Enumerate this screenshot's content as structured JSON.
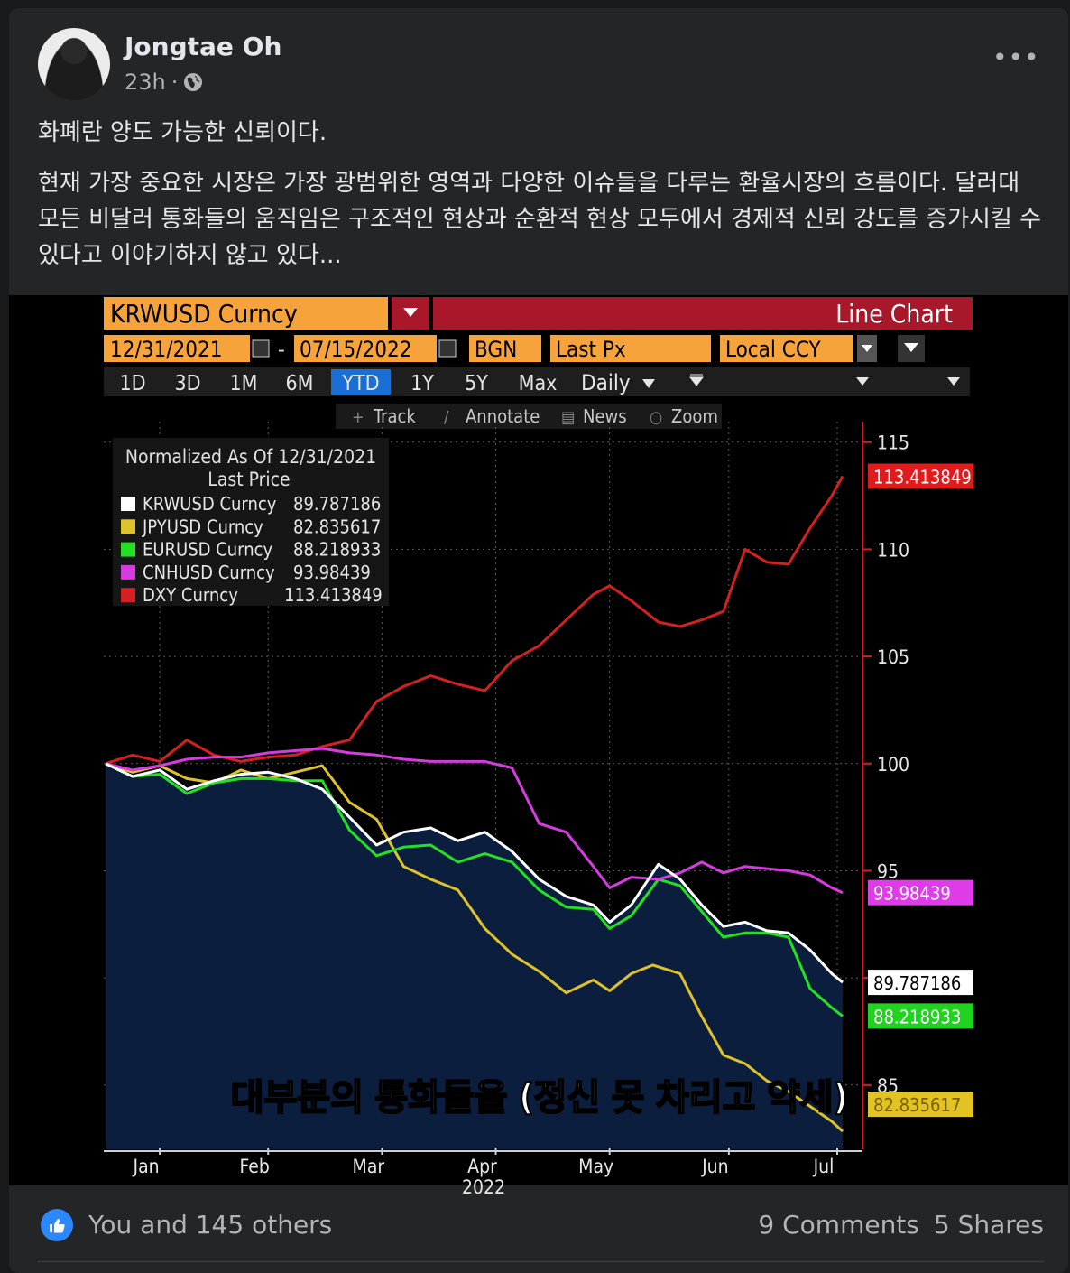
{
  "post": {
    "author": "Jongtae Oh",
    "time": "23h",
    "separator": "·",
    "more_label": "•••",
    "paragraph1": "화폐란 양도 가능한 신뢰이다.",
    "paragraph2": "현재 가장 중요한 시장은 가장 광범위한 영역과 다양한 이슈들을 다루는 환율시장의 흐름이다. 달러대 모든 비달러 통화들의 움직임은 구조적인 현상과 순환적 현상 모두에서 경제적 신뢰 강도를 증가시킬 수 있다고 이야기하지 않고 있다..."
  },
  "terminal": {
    "ticker": "KRWUSD Curncy",
    "chart_kind": "Line Chart",
    "start_date": "12/31/2021",
    "dash": "-",
    "end_date": "07/15/2022",
    "source": "BGN",
    "field": "Last Px",
    "currency": "Local CCY",
    "periods": [
      "1D",
      "3D",
      "1M",
      "6M",
      "YTD",
      "1Y",
      "5Y",
      "Max"
    ],
    "frequency": "Daily",
    "tools": [
      "Track",
      "Annotate",
      "News",
      "Zoom"
    ],
    "legend_title": "Normalized As Of 12/31/2021",
    "legend_subtitle": "Last Price",
    "subtitle_caption": "대부분의 통화들을 (정신 못 차리고 약세)"
  },
  "chart_data": {
    "type": "line",
    "ylim": [
      82,
      116
    ],
    "yticks": [
      85,
      90,
      95,
      100,
      105,
      110,
      115
    ],
    "ytick_labels": [
      "85",
      "",
      "95",
      "100",
      "105",
      "110",
      "115"
    ],
    "xlim": [
      0,
      136
    ],
    "xticks": [
      {
        "label": "Jan",
        "x": 10
      },
      {
        "label": "Feb",
        "x": 30
      },
      {
        "label": "Mar",
        "x": 51
      },
      {
        "label": "Apr",
        "x": 72
      },
      {
        "label": "May",
        "x": 93
      },
      {
        "label": "Jun",
        "x": 115
      },
      {
        "label": "Jul",
        "x": 135
      }
    ],
    "year_label": "2022",
    "series": [
      {
        "name": "KRWUSD Curncy",
        "color": "#ffffff",
        "last": "89.787186",
        "values": [
          [
            0,
            100
          ],
          [
            5,
            99.4
          ],
          [
            10,
            99.7
          ],
          [
            15,
            98.8
          ],
          [
            20,
            99.2
          ],
          [
            25,
            99.5
          ],
          [
            30,
            99.6
          ],
          [
            35,
            99.3
          ],
          [
            40,
            98.8
          ],
          [
            45,
            97.5
          ],
          [
            50,
            96.2
          ],
          [
            55,
            96.8
          ],
          [
            60,
            97
          ],
          [
            65,
            96.4
          ],
          [
            70,
            96.8
          ],
          [
            75,
            95.9
          ],
          [
            80,
            94.6
          ],
          [
            85,
            93.8
          ],
          [
            90,
            93.4
          ],
          [
            93,
            92.6
          ],
          [
            97,
            93.4
          ],
          [
            102,
            95.3
          ],
          [
            106,
            94.6
          ],
          [
            110,
            93.4
          ],
          [
            114,
            92.4
          ],
          [
            118,
            92.6
          ],
          [
            122,
            92.2
          ],
          [
            126,
            92.1
          ],
          [
            130,
            91.3
          ],
          [
            134,
            90.2
          ],
          [
            136,
            89.79
          ]
        ]
      },
      {
        "name": "JPYUSD Curncy",
        "color": "#ddc22c",
        "last": "82.835617",
        "values": [
          [
            0,
            100
          ],
          [
            5,
            99.6
          ],
          [
            10,
            99.9
          ],
          [
            15,
            99.3
          ],
          [
            20,
            99.1
          ],
          [
            25,
            99.7
          ],
          [
            30,
            99.3
          ],
          [
            35,
            99.6
          ],
          [
            40,
            99.9
          ],
          [
            45,
            98.2
          ],
          [
            50,
            97.4
          ],
          [
            55,
            95.2
          ],
          [
            60,
            94.6
          ],
          [
            65,
            94.1
          ],
          [
            70,
            92.3
          ],
          [
            75,
            91.1
          ],
          [
            80,
            90.3
          ],
          [
            85,
            89.3
          ],
          [
            90,
            89.9
          ],
          [
            93,
            89.4
          ],
          [
            97,
            90.2
          ],
          [
            101,
            90.6
          ],
          [
            106,
            90.2
          ],
          [
            110,
            88.2
          ],
          [
            114,
            86.4
          ],
          [
            118,
            86.0
          ],
          [
            122,
            85.2
          ],
          [
            126,
            84.7
          ],
          [
            130,
            84.0
          ],
          [
            134,
            83.3
          ],
          [
            136,
            82.84
          ]
        ]
      },
      {
        "name": "EURUSD Curncy",
        "color": "#23e023",
        "last": "88.218933",
        "values": [
          [
            0,
            100
          ],
          [
            5,
            99.4
          ],
          [
            10,
            99.5
          ],
          [
            15,
            98.6
          ],
          [
            20,
            99.1
          ],
          [
            25,
            99.3
          ],
          [
            30,
            99.3
          ],
          [
            35,
            99.2
          ],
          [
            40,
            99.2
          ],
          [
            45,
            96.9
          ],
          [
            50,
            95.7
          ],
          [
            55,
            96.1
          ],
          [
            60,
            96.2
          ],
          [
            65,
            95.4
          ],
          [
            70,
            95.8
          ],
          [
            75,
            95.4
          ],
          [
            80,
            94.1
          ],
          [
            85,
            93.3
          ],
          [
            90,
            93.2
          ],
          [
            93,
            92.3
          ],
          [
            97,
            92.9
          ],
          [
            102,
            94.6
          ],
          [
            106,
            94.3
          ],
          [
            110,
            93.1
          ],
          [
            114,
            91.9
          ],
          [
            118,
            92.1
          ],
          [
            122,
            92.1
          ],
          [
            126,
            91.9
          ],
          [
            130,
            89.5
          ],
          [
            134,
            88.6
          ],
          [
            136,
            88.22
          ]
        ]
      },
      {
        "name": "CNHUSD Curncy",
        "color": "#d63be0",
        "last": "93.98439",
        "values": [
          [
            0,
            100
          ],
          [
            5,
            99.7
          ],
          [
            10,
            99.9
          ],
          [
            15,
            100.2
          ],
          [
            20,
            100.3
          ],
          [
            25,
            100.3
          ],
          [
            30,
            100.5
          ],
          [
            35,
            100.6
          ],
          [
            40,
            100.7
          ],
          [
            45,
            100.5
          ],
          [
            50,
            100.4
          ],
          [
            55,
            100.2
          ],
          [
            60,
            100.1
          ],
          [
            65,
            100.1
          ],
          [
            70,
            100.1
          ],
          [
            75,
            99.8
          ],
          [
            80,
            97.2
          ],
          [
            85,
            96.8
          ],
          [
            90,
            95.2
          ],
          [
            93,
            94.2
          ],
          [
            97,
            94.7
          ],
          [
            102,
            94.6
          ],
          [
            106,
            94.9
          ],
          [
            110,
            95.4
          ],
          [
            114,
            94.9
          ],
          [
            118,
            95.2
          ],
          [
            122,
            95.1
          ],
          [
            126,
            95.0
          ],
          [
            130,
            94.8
          ],
          [
            134,
            94.2
          ],
          [
            136,
            93.98
          ]
        ]
      },
      {
        "name": "DXY Curncy",
        "color": "#d42020",
        "last": "113.413849",
        "values": [
          [
            0,
            100
          ],
          [
            5,
            100.4
          ],
          [
            10,
            100.1
          ],
          [
            15,
            101.1
          ],
          [
            20,
            100.4
          ],
          [
            25,
            100.1
          ],
          [
            30,
            100.3
          ],
          [
            35,
            100.4
          ],
          [
            40,
            100.8
          ],
          [
            45,
            101.1
          ],
          [
            50,
            102.9
          ],
          [
            55,
            103.6
          ],
          [
            60,
            104.1
          ],
          [
            65,
            103.7
          ],
          [
            70,
            103.4
          ],
          [
            75,
            104.8
          ],
          [
            80,
            105.5
          ],
          [
            85,
            106.7
          ],
          [
            90,
            107.9
          ],
          [
            93,
            108.3
          ],
          [
            97,
            107.6
          ],
          [
            102,
            106.6
          ],
          [
            106,
            106.4
          ],
          [
            110,
            106.7
          ],
          [
            114,
            107.1
          ],
          [
            118,
            110
          ],
          [
            122,
            109.4
          ],
          [
            126,
            109.3
          ],
          [
            130,
            111
          ],
          [
            134,
            112.5
          ],
          [
            136,
            113.41
          ]
        ]
      }
    ]
  },
  "footer": {
    "reactions": "You and 145 others",
    "comments": "9 Comments",
    "shares": "5 Shares"
  },
  "colors": {
    "accent": "#2d88ff",
    "terminal_orange": "#f5a33a",
    "terminal_header_red": "#a9182a",
    "plot_fill": "#0b1e3d"
  }
}
